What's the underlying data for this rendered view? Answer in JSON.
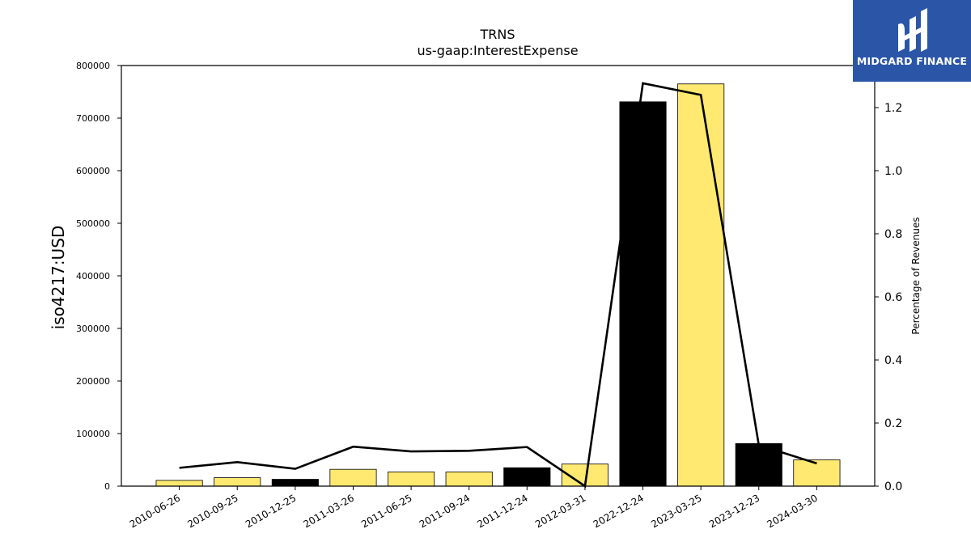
{
  "brand": {
    "name": "MIDGARD FINANCE",
    "icon": "midgard-logo-icon",
    "background": "#2b56a8"
  },
  "chart_data": {
    "type": "bar",
    "title": "TRNS",
    "subtitle": "us-gaap:InterestExpense",
    "ylabel": "iso4217:USD",
    "y2label": "Percentage of Revenues",
    "categories": [
      "2010-06-26",
      "2010-09-25",
      "2010-12-25",
      "2011-03-26",
      "2011-06-25",
      "2011-09-24",
      "2011-12-24",
      "2012-03-31",
      "2022-12-24",
      "2023-03-25",
      "2023-12-23",
      "2024-03-30"
    ],
    "series": [
      {
        "type": "bar",
        "values": [
          11000,
          16000,
          13000,
          32000,
          27000,
          27000,
          35000,
          42000,
          731000,
          765000,
          81000,
          50000
        ],
        "colors": [
          "#ffe970",
          "#ffe970",
          "#000000",
          "#ffe970",
          "#ffe970",
          "#ffe970",
          "#000000",
          "#ffe970",
          "#000000",
          "#ffe970",
          "#000000",
          "#ffe970"
        ]
      },
      {
        "type": "line",
        "axis": "right",
        "color": "#000000",
        "values": [
          0.058,
          0.076,
          0.055,
          0.125,
          0.11,
          0.112,
          0.124,
          0.0,
          1.277,
          1.24,
          0.13,
          0.072
        ]
      }
    ],
    "ylim": [
      0,
      800000
    ],
    "yticks": [
      0,
      100000,
      200000,
      300000,
      400000,
      500000,
      600000,
      700000,
      800000
    ],
    "y2lim": [
      0,
      1.3333
    ],
    "y2ticks": [
      "0.0",
      "0.2",
      "0.4",
      "0.6",
      "0.8",
      "1.0",
      "1.2"
    ],
    "grid": false,
    "legend": "none"
  }
}
